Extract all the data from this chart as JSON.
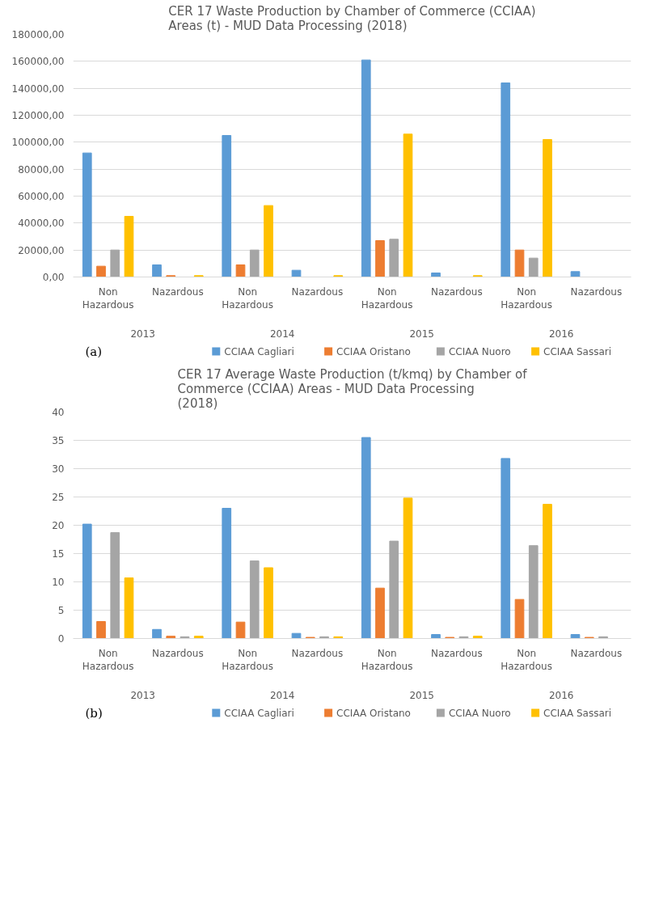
{
  "chart_data": [
    {
      "type": "bar",
      "title": "CER 17 Waste Production by Chamber of Commerce (CCIAA)\nAreas (t) - MUD Data Processing (2018)",
      "categories": [
        "Non\nHazardous",
        "Nazardous",
        "Non\nHazardous",
        "Nazardous",
        "Non\nHazardous",
        "Nazardous",
        "Non\nHazardous",
        "Nazardous"
      ],
      "series": [
        {
          "name": "CCIAA Cagliari",
          "color": "#5b9bd5",
          "values": [
            92000,
            9000,
            105000,
            5000,
            161000,
            3000,
            144000,
            4000
          ]
        },
        {
          "name": "CCIAA Oristano",
          "color": "#ed7d31",
          "values": [
            8000,
            1000,
            9000,
            0,
            27000,
            0,
            20000,
            0
          ]
        },
        {
          "name": "CCIAA Nuoro",
          "color": "#a5a5a5",
          "values": [
            20000,
            0,
            20000,
            0,
            28000,
            0,
            14000,
            0
          ]
        },
        {
          "name": "CCIAA Sassari",
          "color": "#ffc000",
          "values": [
            45000,
            1000,
            53000,
            1000,
            106000,
            1000,
            102000,
            0
          ]
        }
      ],
      "ylim": [
        0,
        180000
      ],
      "yticks": [
        {
          "value": 0,
          "label": "0,00"
        },
        {
          "value": 20000,
          "label": "20000,00"
        },
        {
          "value": 40000,
          "label": "40000,00"
        },
        {
          "value": 60000,
          "label": "60000,00"
        },
        {
          "value": 80000,
          "label": "80000,00"
        },
        {
          "value": 100000,
          "label": "100000,00"
        },
        {
          "value": 120000,
          "label": "120000,00"
        },
        {
          "value": 140000,
          "label": "140000,00"
        },
        {
          "value": 160000,
          "label": "160000,00"
        },
        {
          "value": 180000,
          "label": "180000,00"
        }
      ],
      "grid": "y",
      "legend": "bottom",
      "annotations": [
        "2013",
        "2014",
        "2015",
        "2016",
        "(a)"
      ]
    },
    {
      "type": "bar",
      "title": "CER 17 Average Waste Production (t/kmq) by Chamber of\nCommerce (CCIAA) Areas  - MUD  Data Processing\n(2018)",
      "categories": [
        "Non\nHazardous",
        "Nazardous",
        "Non\nHazardous",
        "Nazardous",
        "Non\nHazardous",
        "Nazardous",
        "Non\nHazardous",
        "Nazardous"
      ],
      "series": [
        {
          "name": "CCIAA Cagliari",
          "color": "#5b9bd5",
          "values": [
            20.2,
            1.6,
            23,
            0.9,
            35.5,
            0.7,
            31.8,
            0.7
          ]
        },
        {
          "name": "CCIAA Oristano",
          "color": "#ed7d31",
          "values": [
            3,
            0.4,
            2.9,
            0.2,
            8.9,
            0.2,
            6.9,
            0.2
          ]
        },
        {
          "name": "CCIAA Nuoro",
          "color": "#a5a5a5",
          "values": [
            18.7,
            0.3,
            13.7,
            0.3,
            17.2,
            0.3,
            16.4,
            0.3
          ]
        },
        {
          "name": "CCIAA Sassari",
          "color": "#ffc000",
          "values": [
            10.7,
            0.4,
            12.5,
            0.3,
            24.8,
            0.4,
            23.7,
            0
          ]
        }
      ],
      "ylim": [
        0,
        40
      ],
      "yticks": [
        0,
        5,
        10,
        15,
        20,
        25,
        30,
        35,
        40
      ],
      "grid": "y",
      "legend": "bottom",
      "annotations": [
        "2013",
        "2014",
        "2015",
        "2016",
        "(b)"
      ]
    }
  ]
}
